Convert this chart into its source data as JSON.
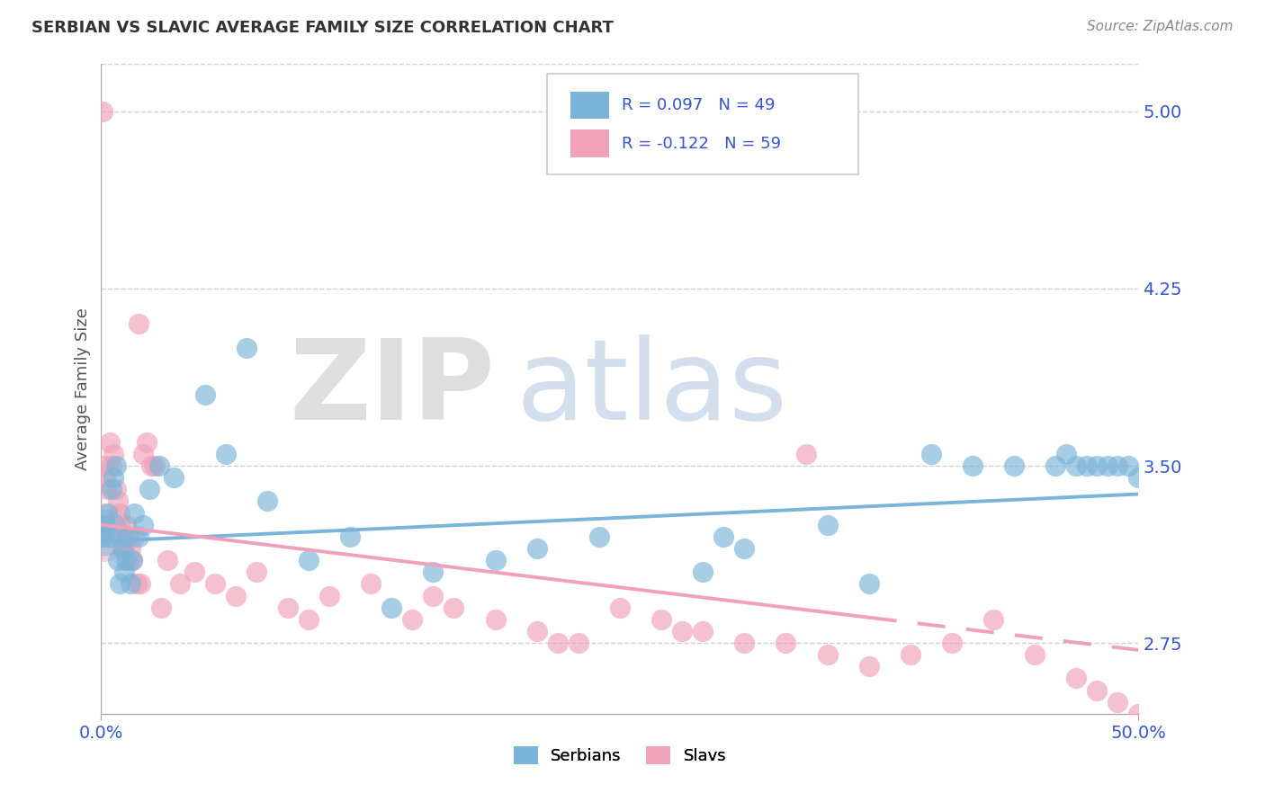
{
  "title": "SERBIAN VS SLAVIC AVERAGE FAMILY SIZE CORRELATION CHART",
  "source": "Source: ZipAtlas.com",
  "ylabel": "Average Family Size",
  "xlim": [
    0.0,
    50.0
  ],
  "ylim": [
    2.45,
    5.2
  ],
  "yticks": [
    2.75,
    3.5,
    4.25,
    5.0
  ],
  "xticks": [
    0.0,
    50.0
  ],
  "xticklabels": [
    "0.0%",
    "50.0%"
  ],
  "grid_color": "#d0d0d0",
  "bg_color": "#ffffff",
  "serbian_color": "#7ab4d8",
  "slav_color": "#f0a0b8",
  "legend_color": "#3355cc",
  "tick_color": "#3355cc",
  "serbian_R": "0.097",
  "serbian_N": "49",
  "slav_R": "-0.122",
  "slav_N": "59",
  "serbians_x": [
    0.1,
    0.2,
    0.3,
    0.4,
    0.5,
    0.6,
    0.7,
    0.8,
    0.9,
    1.0,
    1.1,
    1.2,
    1.3,
    1.4,
    1.5,
    1.6,
    1.8,
    2.0,
    2.3,
    2.8,
    3.5,
    5.0,
    7.0,
    10.0,
    14.0,
    19.0,
    24.0,
    30.0,
    35.0,
    40.0,
    42.0,
    44.0,
    46.0,
    46.5,
    47.0,
    47.5,
    48.0,
    48.5,
    49.0,
    49.5,
    50.0,
    31.0,
    37.0,
    29.0,
    21.0,
    16.0,
    12.0,
    8.0,
    6.0
  ],
  "serbians_y": [
    3.2,
    3.25,
    3.3,
    3.2,
    3.4,
    3.45,
    3.5,
    3.1,
    3.0,
    3.15,
    3.05,
    3.1,
    3.2,
    3.0,
    3.1,
    3.3,
    3.2,
    3.25,
    3.4,
    3.5,
    3.45,
    3.8,
    4.0,
    3.1,
    2.9,
    3.1,
    3.2,
    3.2,
    3.25,
    3.55,
    3.5,
    3.5,
    3.5,
    3.55,
    3.5,
    3.5,
    3.5,
    3.5,
    3.5,
    3.5,
    3.45,
    3.15,
    3.0,
    3.05,
    3.15,
    3.05,
    3.2,
    3.35,
    3.55
  ],
  "slavs_x": [
    0.05,
    0.1,
    0.2,
    0.3,
    0.4,
    0.5,
    0.6,
    0.7,
    0.8,
    0.9,
    1.0,
    1.1,
    1.2,
    1.3,
    1.4,
    1.5,
    1.6,
    1.7,
    1.8,
    1.9,
    2.0,
    2.2,
    2.4,
    2.6,
    2.9,
    3.2,
    3.8,
    4.5,
    5.5,
    6.5,
    7.5,
    9.0,
    11.0,
    13.0,
    15.0,
    17.0,
    19.0,
    21.0,
    23.0,
    25.0,
    27.0,
    29.0,
    31.0,
    33.0,
    35.0,
    37.0,
    39.0,
    41.0,
    43.0,
    45.0,
    47.0,
    48.0,
    49.0,
    50.0,
    34.0,
    28.0,
    22.0,
    16.0,
    10.0
  ],
  "slavs_y": [
    5.0,
    3.5,
    3.45,
    3.4,
    3.6,
    3.5,
    3.55,
    3.4,
    3.35,
    3.3,
    3.2,
    3.15,
    3.25,
    3.1,
    3.15,
    3.1,
    3.2,
    3.0,
    4.1,
    3.0,
    3.55,
    3.6,
    3.5,
    3.5,
    2.9,
    3.1,
    3.0,
    3.05,
    3.0,
    2.95,
    3.05,
    2.9,
    2.95,
    3.0,
    2.85,
    2.9,
    2.85,
    2.8,
    2.75,
    2.9,
    2.85,
    2.8,
    2.75,
    2.75,
    2.7,
    2.65,
    2.7,
    2.75,
    2.85,
    2.7,
    2.6,
    2.55,
    2.5,
    2.45,
    3.55,
    2.8,
    2.75,
    2.95,
    2.85
  ],
  "slav_dash_start": 37.0,
  "serb_line_start_y": 3.18,
  "serb_line_end_y": 3.38,
  "slav_line_start_y": 3.25,
  "slav_line_end_y": 2.72
}
